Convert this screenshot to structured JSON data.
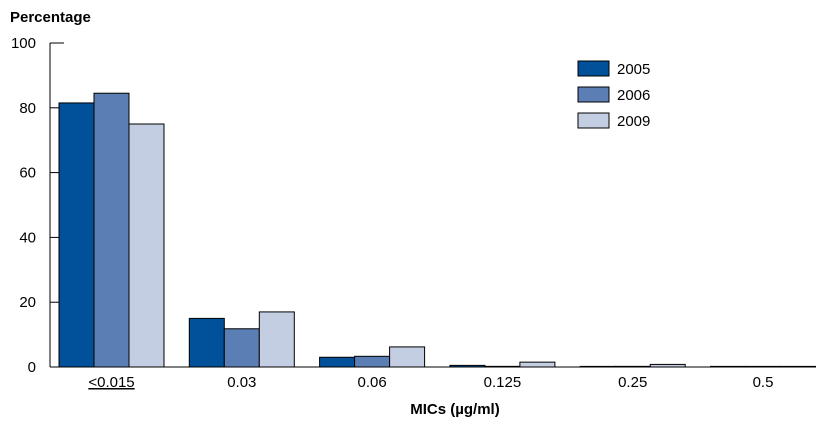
{
  "chart_data": {
    "type": "bar",
    "title": "",
    "ylabel": "Percentage",
    "xlabel": "MICs (µg/ml)",
    "categories": [
      "<0.015",
      "0.03",
      "0.06",
      "0.125",
      "0.25",
      "0.5"
    ],
    "series": [
      {
        "name": "2005",
        "color": "#00509a",
        "values": [
          81.5,
          15.0,
          3.0,
          0.5,
          0.1,
          0.1
        ]
      },
      {
        "name": "2006",
        "color": "#5b7fb5",
        "values": [
          84.5,
          11.8,
          3.3,
          0.2,
          0.2,
          0.1
        ]
      },
      {
        "name": "2009",
        "color": "#c3cee3",
        "values": [
          75.0,
          17.0,
          6.2,
          1.5,
          0.8,
          0.1
        ]
      }
    ],
    "ylim": [
      0,
      100
    ],
    "yticks": [
      0,
      20,
      40,
      60,
      80,
      100
    ],
    "grid": false,
    "legend_position": "top-right"
  }
}
